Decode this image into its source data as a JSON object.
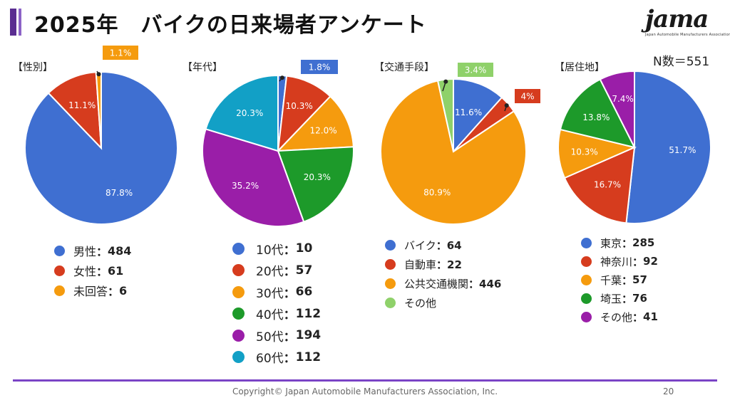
{
  "page": {
    "title": "2025年　バイクの日来場者アンケート",
    "logo_text": "jama",
    "logo_tagline": "Japan Automobile Manufacturers Association",
    "n_count": "N数＝551",
    "footer": "Copyright© Japan Automobile Manufacturers Association, Inc.",
    "page_number": "20"
  },
  "chart_data": [
    {
      "type": "pie",
      "title": "【性別】",
      "slices": [
        {
          "label": "男性",
          "value": 484,
          "percent_label": "87.8%",
          "color": "#3f6fd1"
        },
        {
          "label": "女性",
          "value": 61,
          "percent_label": "11.1%",
          "color": "#d63c1e"
        },
        {
          "label": "未回答",
          "value": 6,
          "percent_label": "1.1%",
          "color": "#f59b0e"
        }
      ],
      "legend_placement": "bottom"
    },
    {
      "type": "pie",
      "title": "【年代】",
      "slices": [
        {
          "label": "10代",
          "value": 10,
          "percent_label": "1.8%",
          "color": "#3f6fd1"
        },
        {
          "label": "20代",
          "value": 57,
          "percent_label": "10.3%",
          "color": "#d63c1e"
        },
        {
          "label": "30代",
          "value": 66,
          "percent_label": "12.0%",
          "color": "#f59b0e"
        },
        {
          "label": "40代",
          "value": 112,
          "percent_label": "20.3%",
          "color": "#1d9a2a"
        },
        {
          "label": "50代",
          "value": 194,
          "percent_label": "35.2%",
          "color": "#9a1ea8"
        },
        {
          "label": "60代",
          "value": 112,
          "percent_label": "20.3%",
          "color": "#12a0c6"
        }
      ],
      "legend_placement": "bottom"
    },
    {
      "type": "pie",
      "title": "【交通手段】",
      "slices": [
        {
          "label": "バイク",
          "value": 64,
          "percent_label": "11.6%",
          "color": "#3f6fd1"
        },
        {
          "label": "自動車",
          "value": 22,
          "percent_label": "4%",
          "color": "#d63c1e"
        },
        {
          "label": "公共交通機関",
          "value": 446,
          "percent_label": "80.9%",
          "color": "#f59b0e"
        },
        {
          "label": "その他",
          "value": 19,
          "percent_label": "3.4%",
          "color": "#8fd16a"
        }
      ],
      "legend_counts": [
        "64",
        "22",
        "446",
        ""
      ],
      "legend_placement": "bottom"
    },
    {
      "type": "pie",
      "title": "【居住地】",
      "slices": [
        {
          "label": "東京",
          "value": 285,
          "percent_label": "51.7%",
          "color": "#3f6fd1"
        },
        {
          "label": "神奈川",
          "value": 92,
          "percent_label": "16.7%",
          "color": "#d63c1e"
        },
        {
          "label": "千葉",
          "value": 57,
          "percent_label": "10.3%",
          "color": "#f59b0e"
        },
        {
          "label": "埼玉",
          "value": 76,
          "percent_label": "13.8%",
          "color": "#1d9a2a"
        },
        {
          "label": "その他",
          "value": 41,
          "percent_label": "7.4%",
          "color": "#9a1ea8"
        }
      ],
      "legend_placement": "bottom"
    }
  ]
}
